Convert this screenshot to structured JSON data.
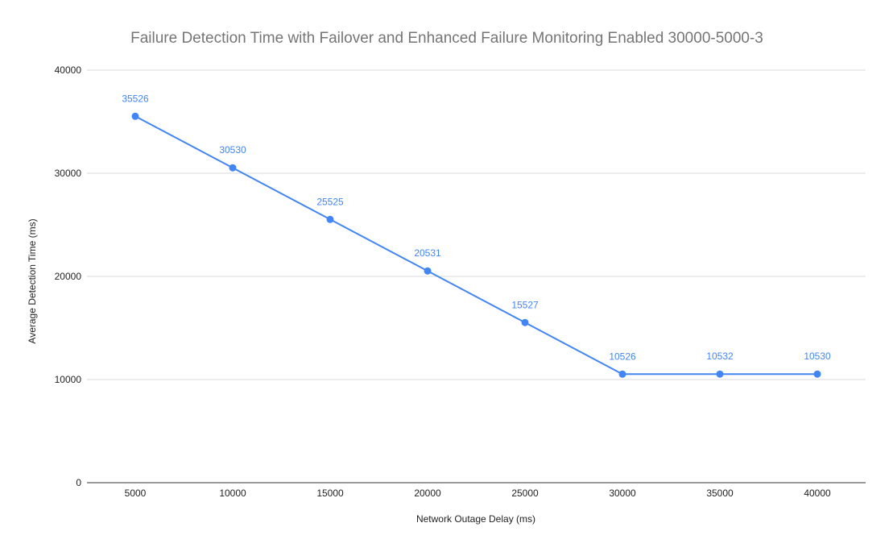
{
  "chart_data": {
    "type": "line",
    "title": "Failure Detection Time with Failover and Enhanced Failure Monitoring Enabled 30000-5000-3",
    "xlabel": "Network Outage Delay (ms)",
    "ylabel": "Average Detection Time (ms)",
    "categories": [
      "5000",
      "10000",
      "15000",
      "20000",
      "25000",
      "30000",
      "35000",
      "40000"
    ],
    "series": [
      {
        "values": [
          35526,
          30530,
          25525,
          20531,
          15527,
          10526,
          10532,
          10530
        ],
        "data_labels": [
          "35526",
          "30530",
          "25525",
          "20531",
          "15527",
          "10526",
          "10532",
          "10530"
        ],
        "color": "#4285f4"
      }
    ],
    "yticks": [
      0,
      10000,
      20000,
      30000,
      40000
    ],
    "ytick_labels": [
      "0",
      "10000",
      "20000",
      "30000",
      "40000"
    ],
    "ylim": [
      0,
      40000
    ],
    "grid": true,
    "legend": "none",
    "colors": {
      "series": "#4285f4",
      "gridline": "#d9d9d9",
      "axis": "#333333",
      "title": "#757575",
      "text": "#222222"
    }
  }
}
